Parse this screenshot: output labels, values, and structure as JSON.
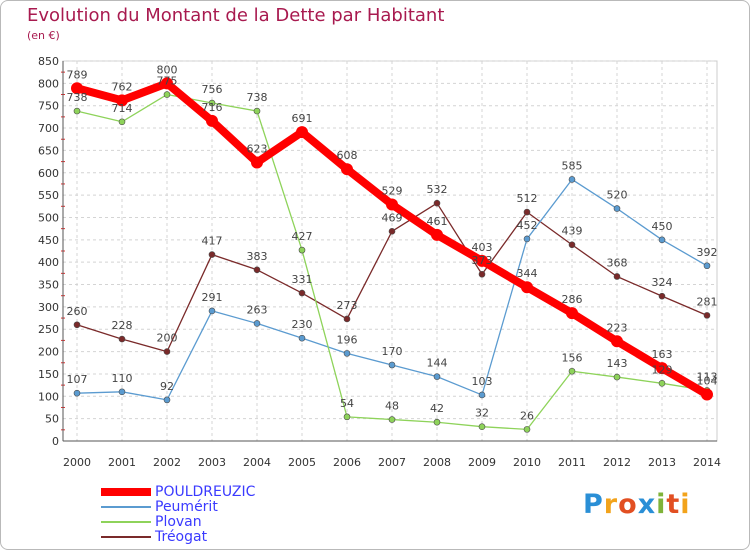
{
  "chart_data": {
    "type": "line",
    "title": "Evolution du Montant de la Dette par Habitant",
    "subtitle": "(en €)",
    "xlabel": "",
    "ylabel": "",
    "x": [
      2000,
      2001,
      2002,
      2003,
      2004,
      2005,
      2006,
      2007,
      2008,
      2009,
      2010,
      2011,
      2012,
      2013,
      2014
    ],
    "ylim": [
      0,
      850
    ],
    "yticks": [
      0,
      50,
      100,
      150,
      200,
      250,
      300,
      350,
      400,
      450,
      500,
      550,
      600,
      650,
      700,
      750,
      800,
      850
    ],
    "grid": true,
    "legend_position": "bottom-left",
    "series": [
      {
        "name": "POULDREUZIC",
        "color": "#ff0000",
        "values": [
          789,
          762,
          800,
          716,
          623,
          691,
          608,
          529,
          461,
          403,
          344,
          286,
          223,
          163,
          104
        ]
      },
      {
        "name": "Peumérit",
        "color": "#5b9bd0",
        "values": [
          107,
          110,
          92,
          291,
          263,
          230,
          196,
          170,
          144,
          103,
          452,
          585,
          520,
          450,
          392
        ]
      },
      {
        "name": "Plovan",
        "color": "#8ed35a",
        "values": [
          738,
          714,
          775,
          756,
          738,
          427,
          54,
          48,
          42,
          32,
          26,
          156,
          143,
          129,
          113
        ]
      },
      {
        "name": "Tréogat",
        "color": "#7a2a2a",
        "values": [
          260,
          228,
          200,
          417,
          383,
          331,
          273,
          469,
          532,
          373,
          512,
          439,
          368,
          324,
          281
        ]
      }
    ]
  },
  "branding": {
    "logo_letters": [
      "P",
      "r",
      "o",
      "x",
      "i",
      "t",
      "i"
    ]
  }
}
